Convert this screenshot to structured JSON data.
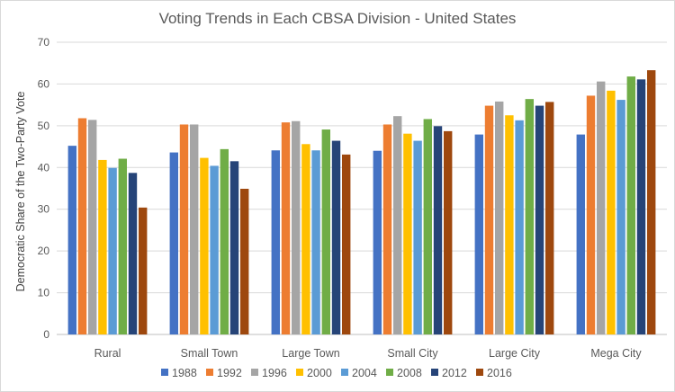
{
  "chart_data": {
    "type": "bar",
    "title": "Voting Trends in Each CBSA Division - United States",
    "ylabel": "Democratic Share of the Two-Party Vote",
    "xlabel": "",
    "ylim": [
      0,
      70
    ],
    "yticks": [
      0,
      10,
      20,
      30,
      40,
      50,
      60,
      70
    ],
    "grid": true,
    "legend_position": "bottom",
    "categories": [
      "Rural",
      "Small Town",
      "Large Town",
      "Small City",
      "Large City",
      "Mega City"
    ],
    "series": [
      {
        "name": "1988",
        "color": "#4472C4",
        "values": [
          45.2,
          43.6,
          44.1,
          44.0,
          47.9,
          47.9
        ]
      },
      {
        "name": "1992",
        "color": "#ED7D31",
        "values": [
          51.8,
          50.3,
          50.8,
          50.3,
          54.8,
          57.2
        ]
      },
      {
        "name": "1996",
        "color": "#A5A5A5",
        "values": [
          51.4,
          50.3,
          51.1,
          52.3,
          55.8,
          60.6
        ]
      },
      {
        "name": "2000",
        "color": "#FFC000",
        "values": [
          41.8,
          42.3,
          45.6,
          48.1,
          52.5,
          58.4
        ]
      },
      {
        "name": "2004",
        "color": "#5B9BD5",
        "values": [
          39.9,
          40.4,
          44.1,
          46.4,
          51.3,
          56.2
        ]
      },
      {
        "name": "2008",
        "color": "#70AD47",
        "values": [
          42.1,
          44.4,
          49.1,
          51.6,
          56.4,
          61.8
        ]
      },
      {
        "name": "2012",
        "color": "#264478",
        "values": [
          38.7,
          41.5,
          46.4,
          49.9,
          54.8,
          61.1
        ]
      },
      {
        "name": "2016",
        "color": "#9E480E",
        "values": [
          30.4,
          34.9,
          43.1,
          48.7,
          55.7,
          63.3
        ]
      }
    ]
  }
}
